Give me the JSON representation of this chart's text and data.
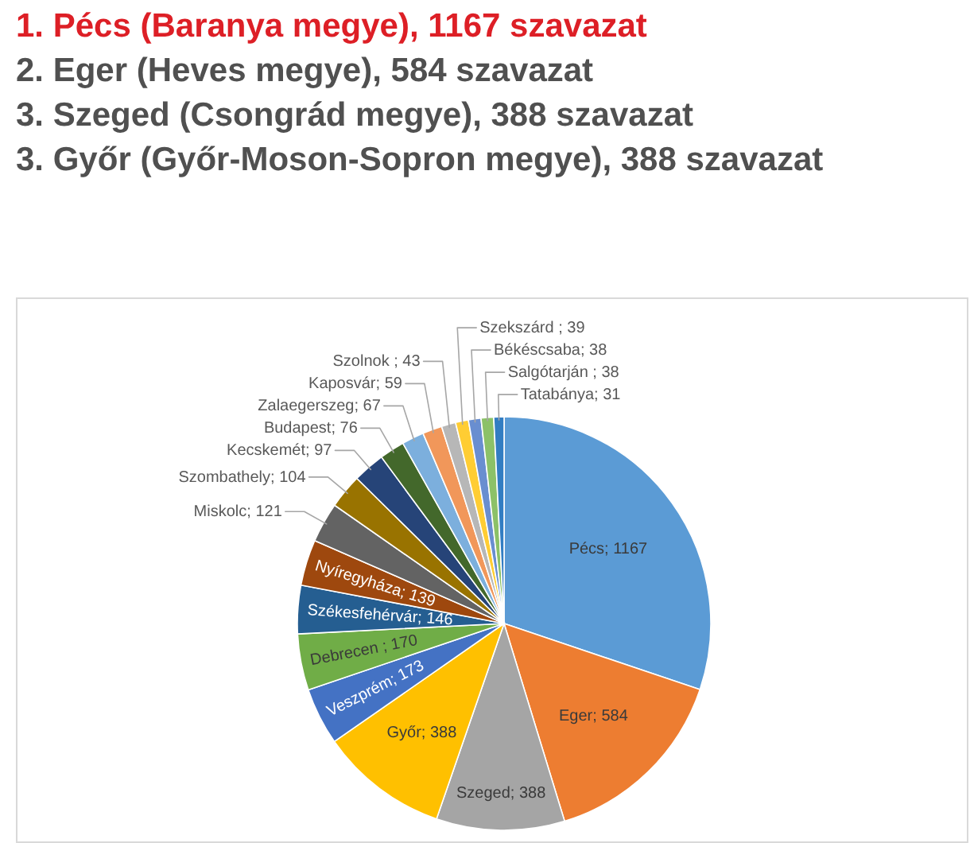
{
  "chart_data": {
    "type": "pie",
    "title": "1. Pécs (Baranya megye), 1167 szavazat",
    "subtitle": "2. Eger (Heves megye), 584 szavazat\n3. Szeged (Csongrád megye), 388 szavazat\n3. Győr (Győr-Moson-Sopron megye), 388 szavazat",
    "categories": [
      "Pécs",
      "Eger",
      "Szeged",
      "Győr",
      "Veszprém",
      "Debrecen",
      "Székesfehérvár",
      "Nyíregyháza",
      "Miskolc",
      "Szombathely",
      "Kecskemét",
      "Budapest",
      "Zalaegerszeg",
      "Kaposvár",
      "Szolnok",
      "Szekszárd",
      "Békéscsaba",
      "Salgótarján",
      "Tatabánya"
    ],
    "values": [
      1167,
      584,
      388,
      388,
      173,
      170,
      146,
      139,
      121,
      104,
      97,
      76,
      67,
      59,
      43,
      39,
      38,
      38,
      31
    ],
    "colors": [
      "#5b9bd5",
      "#ed7d31",
      "#a5a5a5",
      "#ffc000",
      "#4472c4",
      "#70ad47",
      "#255e91",
      "#9e480e",
      "#636363",
      "#997300",
      "#264478",
      "#43682b",
      "#7cafdd",
      "#f1975a",
      "#b7b7b7",
      "#ffcd33",
      "#698ed0",
      "#8cc168",
      "#327dc2"
    ],
    "value_labels": [
      "; 1167",
      "; 584",
      "; 388",
      "; 388",
      "; 173",
      " ; 170",
      "; 146",
      "; 139",
      "; 121",
      "; 104",
      "; 97",
      "; 76",
      "; 67",
      "; 59",
      " ; 43",
      " ; 39",
      "; 38",
      " ; 38",
      "; 31"
    ]
  }
}
